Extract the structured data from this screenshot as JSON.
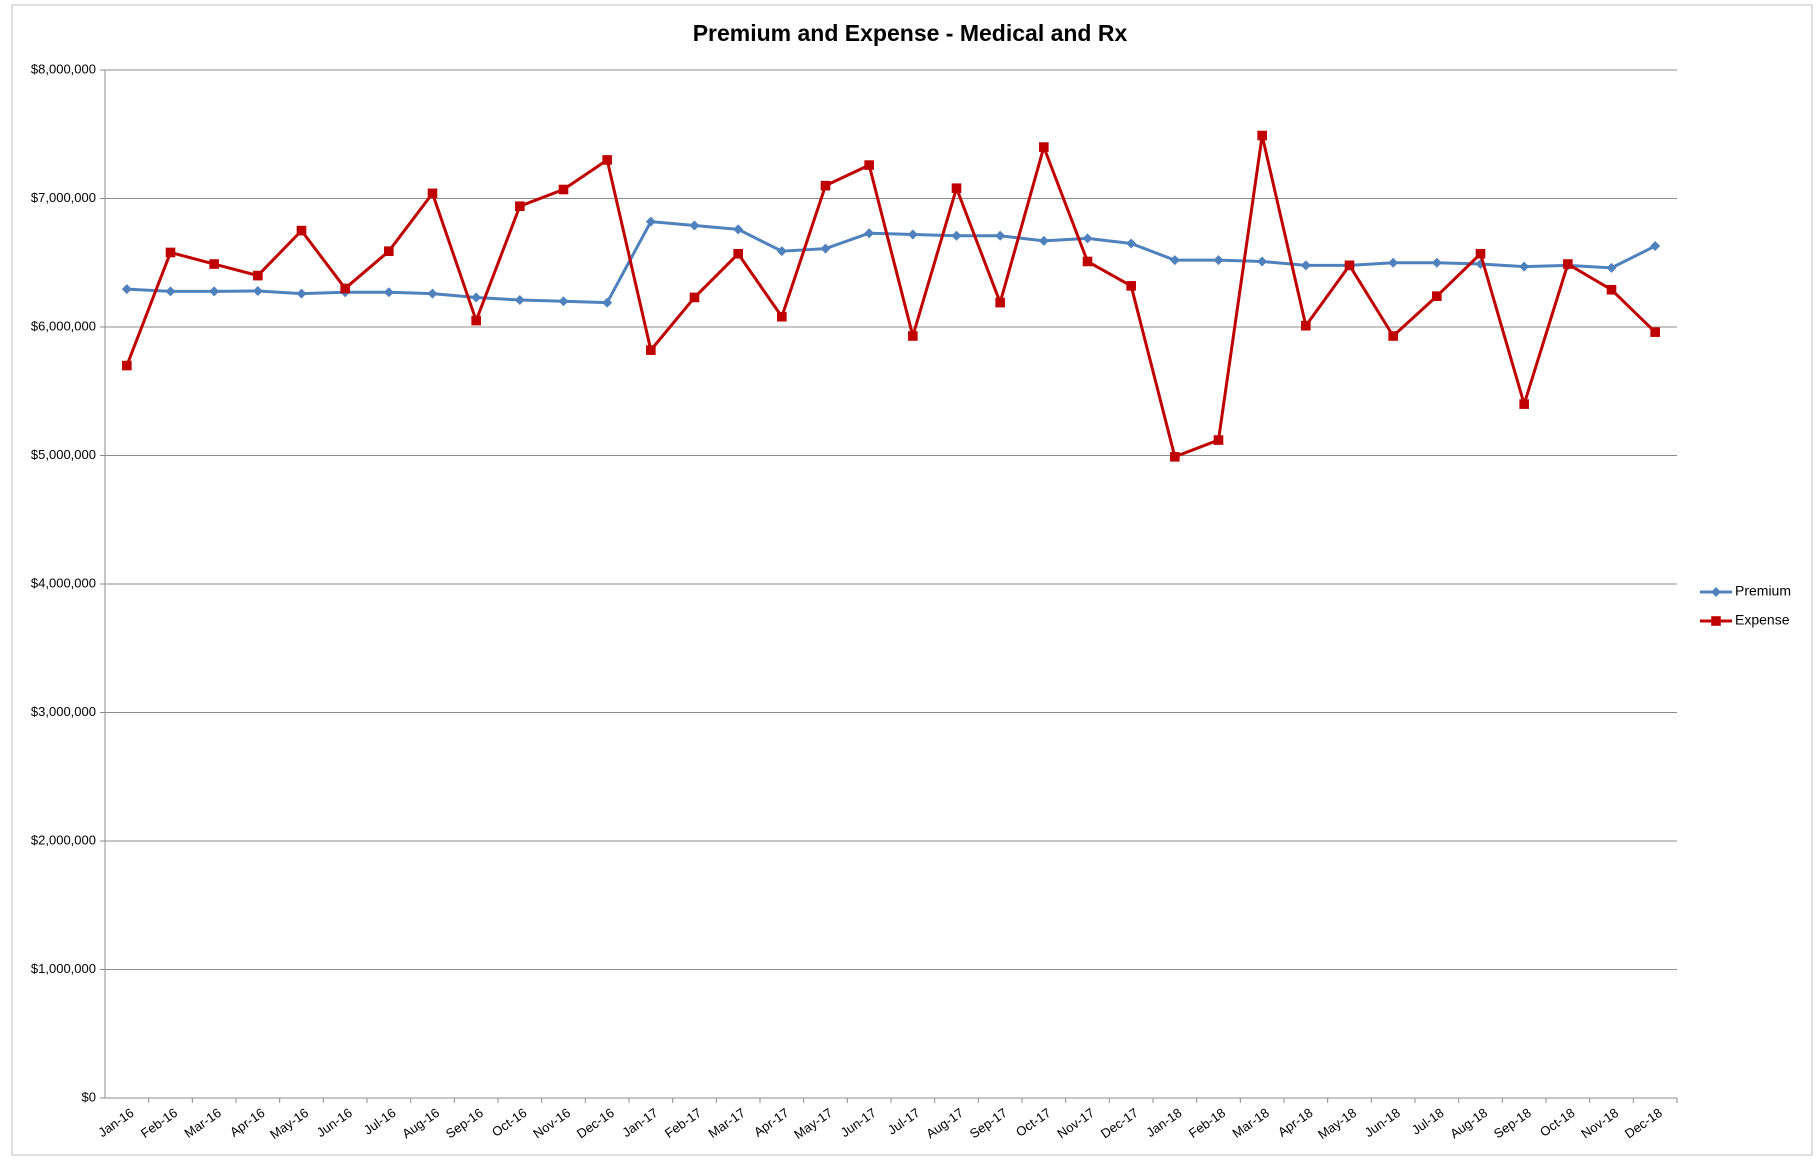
{
  "chart_data": {
    "type": "line",
    "title": "Premium and Expense - Medical and Rx",
    "categories": [
      "Jan-16",
      "Feb-16",
      "Mar-16",
      "Apr-16",
      "May-16",
      "Jun-16",
      "Jul-16",
      "Aug-16",
      "Sep-16",
      "Oct-16",
      "Nov-16",
      "Dec-16",
      "Jan-17",
      "Feb-17",
      "Mar-17",
      "Apr-17",
      "May-17",
      "Jun-17",
      "Jul-17",
      "Aug-17",
      "Sep-17",
      "Oct-17",
      "Nov-17",
      "Dec-17",
      "Jan-18",
      "Feb-18",
      "Mar-18",
      "Apr-18",
      "May-18",
      "Jun-18",
      "Jul-18",
      "Aug-18",
      "Sep-18",
      "Oct-18",
      "Nov-18",
      "Dec-18"
    ],
    "series": [
      {
        "name": "Premium",
        "color": "#4f81bd",
        "marker": "diamond",
        "values": [
          6295000,
          6277000,
          6277000,
          6280000,
          6260000,
          6270000,
          6270000,
          6260000,
          6230000,
          6210000,
          6200000,
          6190000,
          6820000,
          6790000,
          6760000,
          6590000,
          6610000,
          6730000,
          6720000,
          6710000,
          6710000,
          6670000,
          6690000,
          6650000,
          6520000,
          6520000,
          6510000,
          6480000,
          6480000,
          6500000,
          6500000,
          6490000,
          6470000,
          6480000,
          6460000,
          6630000
        ]
      },
      {
        "name": "Expense",
        "color": "#c00000",
        "marker": "square",
        "values": [
          5700000,
          6580000,
          6490000,
          6400000,
          6750000,
          6300000,
          6590000,
          7040000,
          6050000,
          6940000,
          7070000,
          7300000,
          5820000,
          6230000,
          6570000,
          6080000,
          7100000,
          7260000,
          5930000,
          7080000,
          6190000,
          7400000,
          6510000,
          6320000,
          4990000,
          5120000,
          7490000,
          6010000,
          6480000,
          5930000,
          6240000,
          6570000,
          5400000,
          6490000,
          6290000,
          5960000
        ]
      }
    ],
    "ylim": [
      0,
      8000000
    ],
    "yticks": [
      {
        "value": 0,
        "label": "$0"
      },
      {
        "value": 1000000,
        "label": "$1,000,000"
      },
      {
        "value": 2000000,
        "label": "$2,000,000"
      },
      {
        "value": 3000000,
        "label": "$3,000,000"
      },
      {
        "value": 4000000,
        "label": "$4,000,000"
      },
      {
        "value": 5000000,
        "label": "$5,000,000"
      },
      {
        "value": 6000000,
        "label": "$6,000,000"
      },
      {
        "value": 7000000,
        "label": "$7,000,000"
      },
      {
        "value": 8000000,
        "label": "$8,000,000"
      }
    ],
    "grid": true,
    "legend": "right"
  }
}
